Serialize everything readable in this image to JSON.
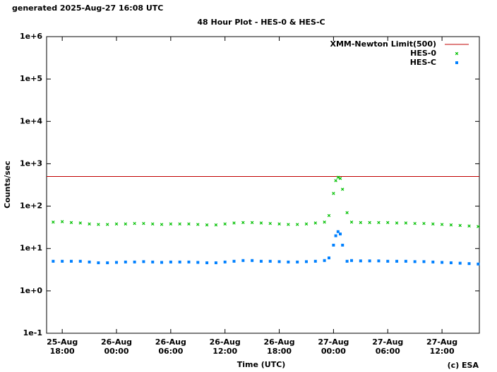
{
  "chart_data": {
    "type": "scatter",
    "header": "generated 2025-Aug-27 16:08 UTC",
    "title": "48 Hour Plot - HES-0 & HES-C",
    "xlabel": "Time (UTC)",
    "ylabel": "Counts/sec",
    "credit": "(c) ESA",
    "log_y": true,
    "legend": "top-right",
    "xlim": [
      16.27,
      64.13
    ],
    "xticks": [
      {
        "value": 18,
        "label": "25-Aug\n18:00"
      },
      {
        "value": 24,
        "label": "26-Aug\n00:00"
      },
      {
        "value": 30,
        "label": "26-Aug\n06:00"
      },
      {
        "value": 36,
        "label": "26-Aug\n12:00"
      },
      {
        "value": 42,
        "label": "26-Aug\n18:00"
      },
      {
        "value": 48,
        "label": "27-Aug\n00:00"
      },
      {
        "value": 54,
        "label": "27-Aug\n06:00"
      },
      {
        "value": 60,
        "label": "27-Aug\n12:00"
      }
    ],
    "ylim": [
      0.1,
      1000000
    ],
    "yticks": [
      {
        "value": 0.1,
        "label": "1e-1"
      },
      {
        "value": 1,
        "label": "1e+0"
      },
      {
        "value": 10,
        "label": "1e+1"
      },
      {
        "value": 100,
        "label": "1e+2"
      },
      {
        "value": 1000,
        "label": "1e+3"
      },
      {
        "value": 10000,
        "label": "1e+4"
      },
      {
        "value": 100000,
        "label": "1e+5"
      },
      {
        "value": 1000000,
        "label": "1e+6"
      }
    ],
    "reference_lines": [
      {
        "name": "XMM-Newton Limit(500)",
        "value": 500,
        "color": "#c00000"
      }
    ],
    "x": [
      17,
      18,
      19,
      20,
      21,
      22,
      23,
      24,
      25,
      26,
      27,
      28,
      29,
      30,
      31,
      32,
      33,
      34,
      35,
      36,
      37,
      38,
      39,
      40,
      41,
      42,
      43,
      44,
      45,
      46,
      47,
      47.5,
      48,
      48.25,
      48.5,
      48.75,
      49,
      49.5,
      50,
      51,
      52,
      53,
      54,
      55,
      56,
      57,
      58,
      59,
      60,
      61,
      62,
      63,
      64
    ],
    "series": [
      {
        "name": "HES-0",
        "color": "#00c000",
        "marker": "x",
        "values": [
          42,
          43,
          41,
          40,
          38,
          37,
          37,
          38,
          38,
          39,
          39,
          38,
          37,
          38,
          38,
          38,
          37,
          36,
          36,
          38,
          40,
          41,
          41,
          40,
          39,
          38,
          37,
          37,
          38,
          40,
          42,
          60,
          200,
          400,
          480,
          450,
          250,
          70,
          42,
          41,
          41,
          41,
          41,
          40,
          40,
          39,
          39,
          38,
          37,
          36,
          35,
          34,
          33
        ]
      },
      {
        "name": "HES-C",
        "color": "#0080ff",
        "marker": "square",
        "values": [
          5,
          5,
          5,
          5,
          4.8,
          4.6,
          4.6,
          4.7,
          4.8,
          4.8,
          4.9,
          4.8,
          4.7,
          4.8,
          4.8,
          4.8,
          4.7,
          4.6,
          4.6,
          4.8,
          5,
          5.2,
          5.2,
          5,
          5,
          4.9,
          4.8,
          4.8,
          4.9,
          5,
          5.2,
          6,
          12,
          20,
          25,
          22,
          12,
          5,
          5.2,
          5.1,
          5.1,
          5.1,
          5,
          5,
          5,
          4.9,
          4.9,
          4.8,
          4.7,
          4.6,
          4.5,
          4.4,
          4.3
        ]
      }
    ]
  }
}
